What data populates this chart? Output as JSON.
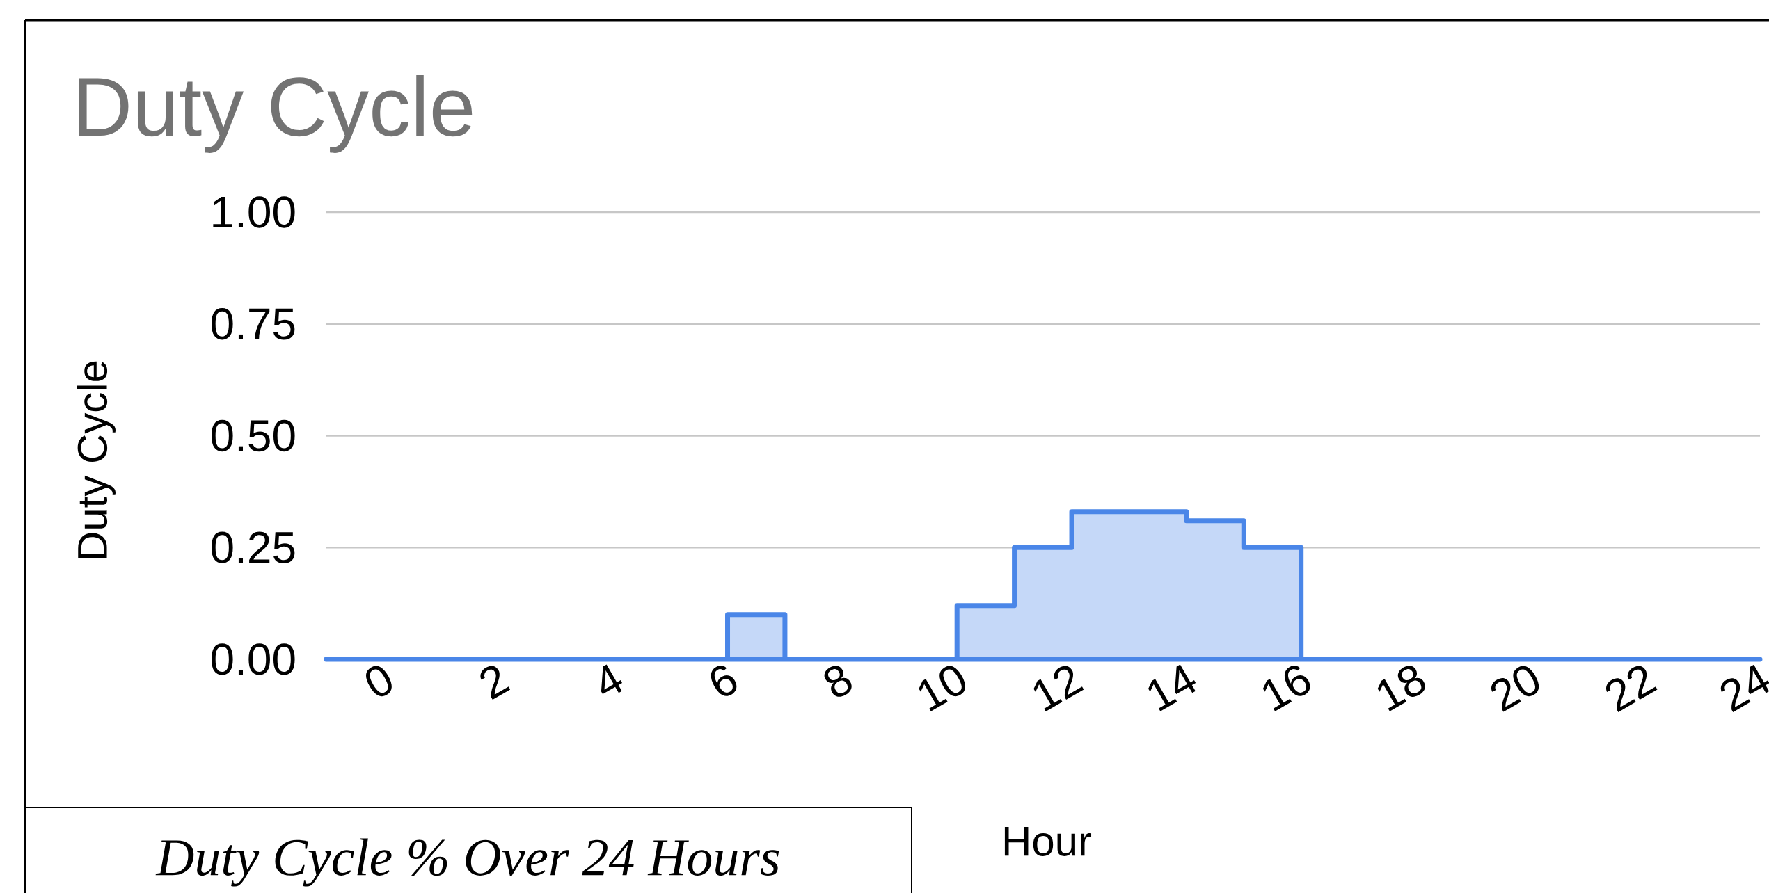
{
  "chart_data": {
    "type": "area",
    "title": "Duty Cycle",
    "xlabel": "Hour",
    "ylabel": "Duty Cycle",
    "annotations": [
      "Duty Cycle % Over 24 Hours"
    ],
    "x": [
      -1,
      6,
      6,
      7,
      7,
      10,
      10,
      11,
      11,
      12,
      12,
      14,
      14,
      15,
      15,
      16,
      16,
      24
    ],
    "values": [
      0,
      0,
      0.1,
      0.1,
      0,
      0,
      0.12,
      0.12,
      0.25,
      0.25,
      0.33,
      0.33,
      0.31,
      0.31,
      0.25,
      0.25,
      0,
      0
    ],
    "color": "#4a86e8",
    "xlim": [
      -1,
      24
    ],
    "xticks": [
      0,
      2,
      4,
      6,
      8,
      10,
      12,
      14,
      16,
      18,
      20,
      22,
      24
    ],
    "ylim": [
      0,
      1
    ],
    "yticks": [
      {
        "value": 0,
        "label": "0.00"
      },
      {
        "value": 0.25,
        "label": "0.25"
      },
      {
        "value": 0.5,
        "label": "0.50"
      },
      {
        "value": 0.75,
        "label": "0.75"
      },
      {
        "value": 1,
        "label": "1.00"
      }
    ],
    "grid": "y"
  }
}
